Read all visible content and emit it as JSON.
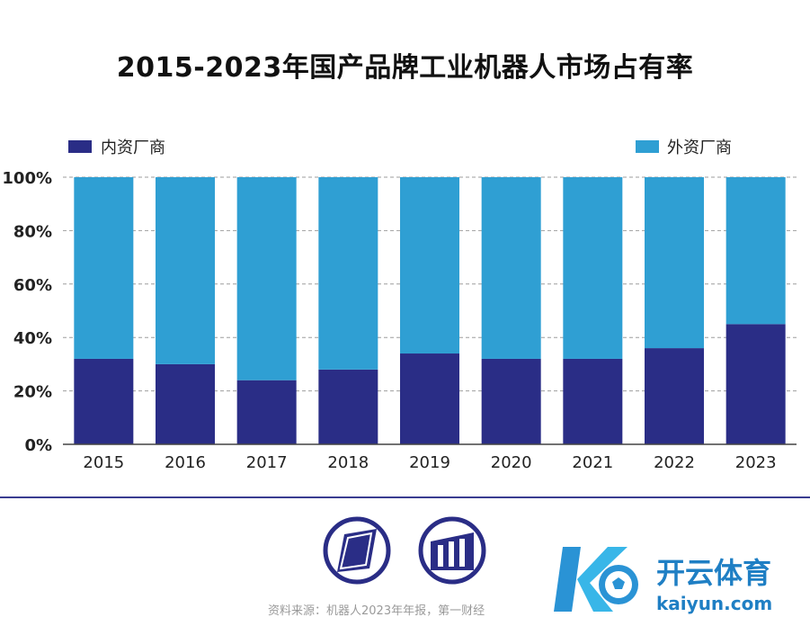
{
  "title": "2015-2023年国产品牌工业机器人市场占有率",
  "chart_data": {
    "type": "bar",
    "stacked": true,
    "categories": [
      "2015",
      "2016",
      "2017",
      "2018",
      "2019",
      "2020",
      "2021",
      "2022",
      "2023"
    ],
    "series": [
      {
        "name": "内资厂商",
        "color": "#2a2d86",
        "values": [
          32,
          30,
          24,
          28,
          34,
          32,
          32,
          36,
          45
        ]
      },
      {
        "name": "外资厂商",
        "color": "#2f9fd3",
        "values": [
          68,
          70,
          76,
          72,
          66,
          68,
          68,
          64,
          55
        ]
      }
    ],
    "ylim": [
      0,
      100
    ],
    "yticks": [
      "0%",
      "20%",
      "40%",
      "60%",
      "80%",
      "100%"
    ],
    "grid": true,
    "legend": "top"
  },
  "footer": {
    "source": "资料来源：机器人2023年年报，第一财经",
    "brand_cn": "开云体育",
    "brand_en": "kaiyun.com"
  },
  "colors": {
    "domestic": "#2a2d86",
    "foreign": "#2f9fd3",
    "divider": "#3a3d91",
    "brand": "#2a93d5"
  },
  "icons": [
    "parallelogram-logo-icon",
    "columns-logo-icon",
    "kaiyun-logo-icon",
    "soccer-ball-icon"
  ]
}
